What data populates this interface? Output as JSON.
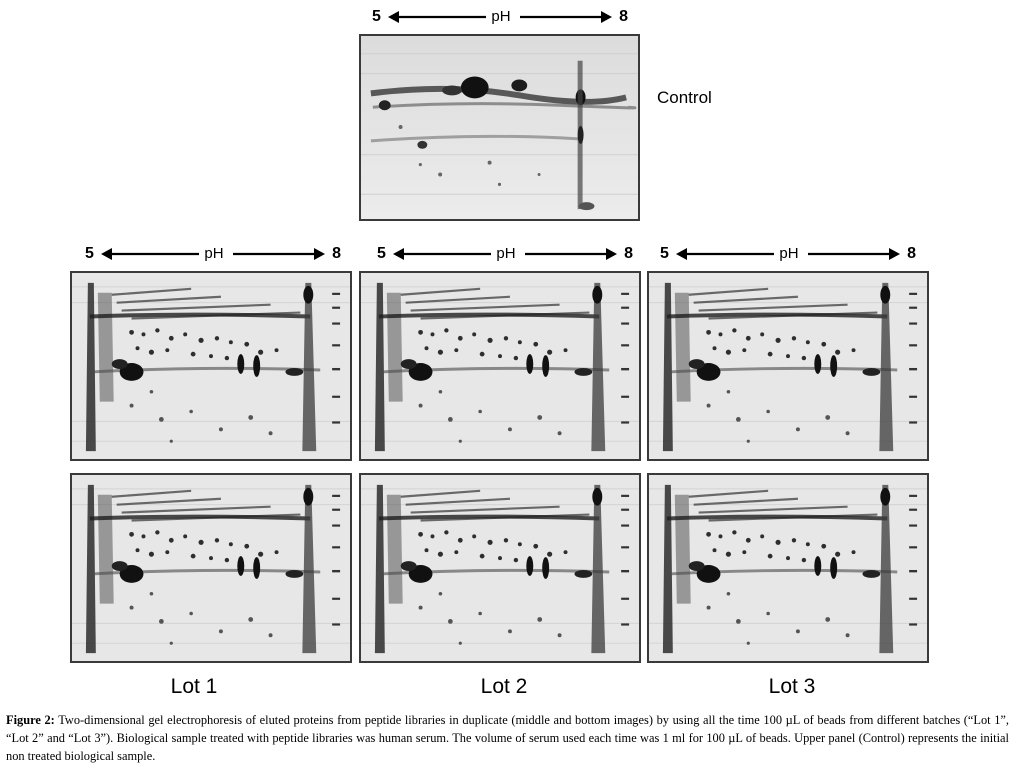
{
  "ph_axis": {
    "low": "5",
    "high": "8",
    "label": "pH"
  },
  "control_label": "Control",
  "lots": [
    "Lot 1",
    "Lot 2",
    "Lot 3"
  ],
  "caption": {
    "title": "Figure 2:",
    "text": "Two-dimensional gel electrophoresis of eluted proteins from peptide libraries in duplicate (middle and bottom images) by using all the time 100 µL of beads from different batches (“Lot 1”, “Lot 2” and “Lot 3”). Biological sample treated with peptide libraries was human serum. The volume of serum used each time was 1 ml for 100 µL of beads. Upper panel (Control) represents the initial non treated biological sample."
  }
}
